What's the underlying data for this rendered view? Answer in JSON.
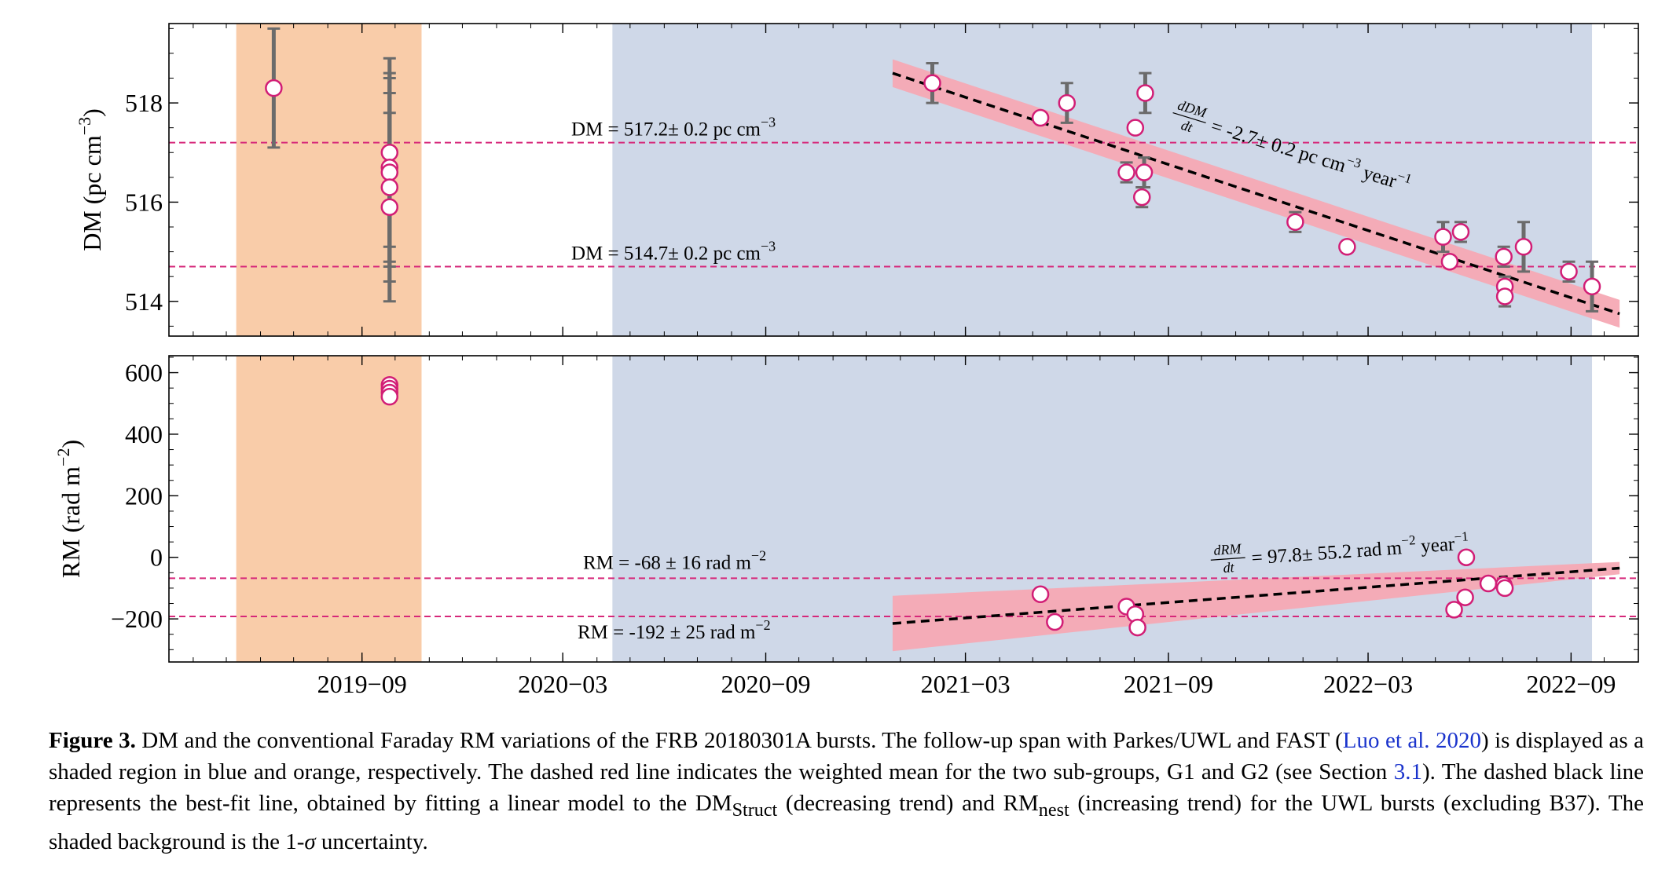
{
  "chart_data": [
    {
      "type": "scatter",
      "panel": "top",
      "ylabel": "DM (pc cm⁻³)",
      "ylabel_parts": [
        "DM (pc cm",
        "−3",
        ")"
      ],
      "ylim": [
        513.3,
        519.6
      ],
      "yticks": [
        514,
        516,
        518
      ],
      "xlim": [
        "2019-03-10",
        "2022-11-01"
      ],
      "xticks": [
        "2019−09",
        "2020−03",
        "2020−09",
        "2021−03",
        "2021−09",
        "2022−03",
        "2022−09"
      ],
      "shaded_regions": [
        {
          "name": "FAST",
          "x": [
            "2019-05-10",
            "2019-10-25"
          ],
          "color": "#f9cca9"
        },
        {
          "name": "Parkes/UWL",
          "x": [
            "2020-04-15",
            "2022-09-20"
          ],
          "color": "#cfd8e8"
        }
      ],
      "hlines": [
        {
          "y": 517.2,
          "label_prefix": "DM = 517.2± 0.2 pc cm",
          "label_sup": "−3",
          "color": "#d6287a"
        },
        {
          "y": 514.7,
          "label_prefix": "DM = 514.7± 0.2 pc cm",
          "label_sup": "−3",
          "color": "#d6287a"
        }
      ],
      "fit": {
        "x": [
          "2020-12-25",
          "2022-10-15"
        ],
        "y": [
          518.6,
          513.75
        ],
        "band_halfwidth": 0.28,
        "label_frac_num": "dDM",
        "label_frac_den": "dt",
        "label_rest": "= -2.7± 0.2 pc cm",
        "label_sup1": "−3",
        "label_rest2": " year",
        "label_sup2": "−1",
        "label_anchor": [
          "2021-09-20",
          517.7
        ]
      },
      "points": [
        {
          "x": "2019-06-13",
          "y": 518.3,
          "err": 1.2
        },
        {
          "x": "2019-09-26",
          "y": 517.0,
          "err": 1.9
        },
        {
          "x": "2019-09-26",
          "y": 516.7,
          "err": 1.9
        },
        {
          "x": "2019-09-26",
          "y": 516.6,
          "err": 1.9
        },
        {
          "x": "2019-09-26",
          "y": 516.3,
          "err": 1.9
        },
        {
          "x": "2019-09-26",
          "y": 515.9,
          "err": 1.9
        },
        {
          "x": "2021-01-30",
          "y": 518.4,
          "err": 0.4
        },
        {
          "x": "2021-05-08",
          "y": 517.7,
          "err": 0.0
        },
        {
          "x": "2021-06-01",
          "y": 518.0,
          "err": 0.4
        },
        {
          "x": "2021-07-25",
          "y": 516.6,
          "err": 0.2
        },
        {
          "x": "2021-08-02",
          "y": 517.5,
          "err": 0.0
        },
        {
          "x": "2021-08-08",
          "y": 516.1,
          "err": 0.2
        },
        {
          "x": "2021-08-10",
          "y": 516.6,
          "err": 0.3
        },
        {
          "x": "2021-08-11",
          "y": 518.2,
          "err": 0.4
        },
        {
          "x": "2021-12-25",
          "y": 515.6,
          "err": 0.2
        },
        {
          "x": "2022-02-10",
          "y": 515.1,
          "err": 0.0
        },
        {
          "x": "2022-05-08",
          "y": 515.3,
          "err": 0.3
        },
        {
          "x": "2022-05-14",
          "y": 514.8,
          "err": 0.0
        },
        {
          "x": "2022-05-24",
          "y": 515.4,
          "err": 0.2
        },
        {
          "x": "2022-07-02",
          "y": 514.9,
          "err": 0.2
        },
        {
          "x": "2022-07-03",
          "y": 514.3,
          "err": 0.2
        },
        {
          "x": "2022-07-03",
          "y": 514.1,
          "err": 0.2
        },
        {
          "x": "2022-07-20",
          "y": 515.1,
          "err": 0.5
        },
        {
          "x": "2022-08-30",
          "y": 514.6,
          "err": 0.2
        },
        {
          "x": "2022-09-20",
          "y": 514.3,
          "err": 0.5
        }
      ]
    },
    {
      "type": "scatter",
      "panel": "bottom",
      "ylabel": "RM (rad m⁻²)",
      "ylabel_parts": [
        "RM (rad m",
        "−2",
        ")"
      ],
      "ylim": [
        -340,
        655
      ],
      "yticks": [
        600,
        400,
        200,
        0,
        -200
      ],
      "ytick_labels": [
        "600",
        "400",
        "200",
        "0",
        "−200"
      ],
      "xlim": [
        "2019-03-10",
        "2022-11-01"
      ],
      "hlines": [
        {
          "y": -68,
          "label_prefix": "RM = -68 ± 16 rad m",
          "label_sup": "−2",
          "color": "#d6287a"
        },
        {
          "y": -192,
          "label_prefix": "RM = -192 ± 25 rad m",
          "label_sup": "−2",
          "color": "#d6287a"
        }
      ],
      "fit": {
        "x": [
          "2020-12-25",
          "2022-10-15"
        ],
        "y": [
          -215,
          -35
        ],
        "band_start_halfwidth": 90,
        "band_end_halfwidth": 20,
        "label_frac_num": "dRM",
        "label_frac_den": "dt",
        "label_rest": "= 97.8± 55.2 rad m",
        "label_sup1": "−2",
        "label_rest2": " year",
        "label_sup2": "−1",
        "label_anchor": [
          "2021-10-25",
          -5
        ]
      },
      "points": [
        {
          "x": "2019-09-26",
          "y": 560
        },
        {
          "x": "2019-09-26",
          "y": 548
        },
        {
          "x": "2019-09-26",
          "y": 535
        },
        {
          "x": "2019-09-26",
          "y": 522
        },
        {
          "x": "2021-05-08",
          "y": -120
        },
        {
          "x": "2021-05-21",
          "y": -210
        },
        {
          "x": "2021-07-25",
          "y": -160
        },
        {
          "x": "2021-08-02",
          "y": -185
        },
        {
          "x": "2021-08-04",
          "y": -228
        },
        {
          "x": "2022-05-18",
          "y": -170
        },
        {
          "x": "2022-05-28",
          "y": -130
        },
        {
          "x": "2022-05-29",
          "y": 0
        },
        {
          "x": "2022-06-18",
          "y": -85
        },
        {
          "x": "2022-07-02",
          "y": -90
        },
        {
          "x": "2022-07-03",
          "y": -100
        }
      ]
    }
  ],
  "caption": {
    "label": "Figure 3.",
    "text1": " DM and the conventional Faraday RM variations of the FRB 20180301A bursts. The follow-up span with Parkes/UWL and FAST (",
    "cite1": "Luo et al. 2020",
    "text2": ") is displayed as a shaded region in blue and orange, respectively. The dashed red line indicates the weighted mean for the two sub-groups, G1 and G2 (see Section ",
    "cite2": "3.1",
    "text3": "). The dashed black line represents the best-fit line, obtained by fitting a linear model to the DM",
    "sub1": "Struct",
    "text4": " (decreasing trend) and RM",
    "sub2": "nest",
    "text5": " (increasing trend) for the UWL bursts (excluding B37). The shaded background is the 1-",
    "sigma": "σ",
    "text6": " uncertainty."
  },
  "colors": {
    "marker_edge": "#d21e76",
    "fit_band": "#f6a9b4",
    "errorbar": "#6b6b6b",
    "hline": "#d6287a"
  }
}
